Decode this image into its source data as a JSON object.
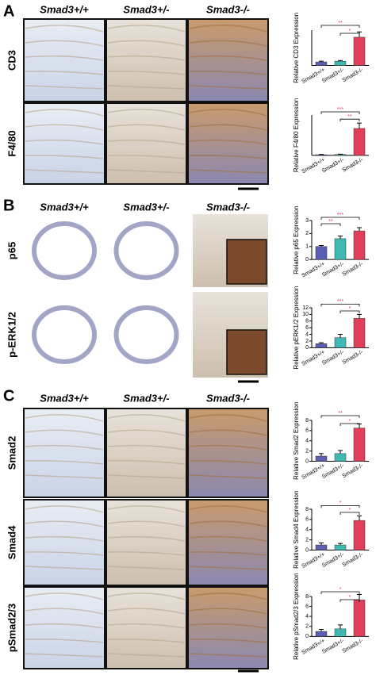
{
  "figure": {
    "panels": [
      {
        "label": "A",
        "columns": [
          "Smad3+/+",
          "Smad3+/-",
          "Smad3-/-"
        ],
        "rows": [
          "CD3",
          "F4/80"
        ]
      },
      {
        "label": "B",
        "columns": [
          "Smad3+/+",
          "Smad3+/-",
          "Smad3-/-"
        ],
        "rows": [
          "p65",
          "p-ERK1/2"
        ]
      },
      {
        "label": "C",
        "columns": [
          "Smad3+/+",
          "Smad3+/-",
          "Smad3-/-"
        ],
        "rows": [
          "Smad2",
          "Smad4",
          "pSmad2/3"
        ]
      }
    ]
  },
  "chart_data": [
    {
      "type": "bar",
      "ylabel": "Relative CD3 Expression",
      "categories": [
        "Smad3+/+",
        "Smad3+/-",
        "Smad3-/-"
      ],
      "values": [
        1,
        1.2,
        8
      ],
      "errors": [
        0.2,
        0.2,
        1.5
      ],
      "colors": [
        "#5a5fb4",
        "#3fbab2",
        "#e0405a"
      ],
      "ylim": [
        0,
        10
      ],
      "significance": [
        {
          "from": 0,
          "to": 2,
          "label": "**",
          "color": "#e0405a"
        },
        {
          "from": 1,
          "to": 2,
          "label": "*",
          "color": "#e0405a"
        }
      ]
    },
    {
      "type": "bar",
      "ylabel": "Relative F4/80 Expression",
      "categories": [
        "Smad3+/+",
        "Smad3+/-",
        "Smad3-/-"
      ],
      "values": [
        0.5,
        0.7,
        20
      ],
      "errors": [
        0.2,
        0.2,
        4
      ],
      "colors": [
        "#5a5fb4",
        "#3fbab2",
        "#e0405a"
      ],
      "ylim": [
        0,
        30
      ],
      "significance": [
        {
          "from": 0,
          "to": 2,
          "label": "***",
          "color": "#e0405a"
        },
        {
          "from": 1,
          "to": 2,
          "label": "**",
          "color": "#e0405a"
        }
      ]
    },
    {
      "type": "bar",
      "ylabel": "Relative p65 Expression",
      "categories": [
        "Smad3+/+",
        "Smad3+/-",
        "Smad3-/-"
      ],
      "values": [
        1,
        1.6,
        2.2
      ],
      "errors": [
        0.08,
        0.2,
        0.25
      ],
      "colors": [
        "#5a5fb4",
        "#3fbab2",
        "#e0405a"
      ],
      "ylim": [
        0,
        3
      ],
      "yticks": [
        0,
        1,
        2,
        3
      ],
      "significance": [
        {
          "from": 0,
          "to": 2,
          "label": "***",
          "color": "#e0405a"
        },
        {
          "from": 0,
          "to": 1,
          "label": "**",
          "color": "#e0405a"
        }
      ]
    },
    {
      "type": "bar",
      "ylabel": "Relative pERK1/2 Expression",
      "categories": [
        "Smad3+/+",
        "Smad3+/-",
        "Smad3-/-"
      ],
      "values": [
        1.2,
        3,
        8.8
      ],
      "errors": [
        0.3,
        1,
        1.2
      ],
      "colors": [
        "#5a5fb4",
        "#3fbab2",
        "#e0405a"
      ],
      "ylim": [
        0,
        12
      ],
      "yticks": [
        0,
        2,
        4,
        6,
        8,
        10,
        12
      ],
      "significance": [
        {
          "from": 0,
          "to": 2,
          "label": "***",
          "color": "#e0405a"
        },
        {
          "from": 1,
          "to": 2,
          "label": "*",
          "color": "#e0405a"
        }
      ]
    },
    {
      "type": "bar",
      "ylabel": "Relative Smad2 Expression",
      "categories": [
        "Smad3+/+",
        "Smad3+/-",
        "Smad3-/-"
      ],
      "values": [
        1,
        1.5,
        6.5
      ],
      "errors": [
        0.5,
        0.6,
        0.8
      ],
      "colors": [
        "#5a5fb4",
        "#3fbab2",
        "#e0405a"
      ],
      "ylim": [
        0,
        8
      ],
      "yticks": [
        0,
        2,
        4,
        6,
        8
      ],
      "significance": [
        {
          "from": 0,
          "to": 2,
          "label": "**",
          "color": "#e0405a"
        },
        {
          "from": 1,
          "to": 2,
          "label": "*",
          "color": "#e0405a"
        }
      ]
    },
    {
      "type": "bar",
      "ylabel": "Relative Smad4 Expression",
      "categories": [
        "Smad3+/+",
        "Smad3+/-",
        "Smad3-/-"
      ],
      "values": [
        1,
        1,
        5.8
      ],
      "errors": [
        0.4,
        0.3,
        0.9
      ],
      "colors": [
        "#5a5fb4",
        "#3fbab2",
        "#e0405a"
      ],
      "ylim": [
        0,
        8
      ],
      "yticks": [
        0,
        2,
        4,
        6,
        8
      ],
      "significance": [
        {
          "from": 0,
          "to": 2,
          "label": "*",
          "color": "#e0405a"
        },
        {
          "from": 1,
          "to": 2,
          "label": "*",
          "color": "#e0405a"
        }
      ]
    },
    {
      "type": "bar",
      "ylabel": "Relative pSmad2/3 Expression",
      "categories": [
        "Smad3+/+",
        "Smad3+/-",
        "Smad3-/-"
      ],
      "values": [
        1,
        1.5,
        7.3
      ],
      "errors": [
        0.4,
        0.8,
        1.1
      ],
      "colors": [
        "#5a5fb4",
        "#3fbab2",
        "#e0405a"
      ],
      "ylim": [
        0,
        8
      ],
      "yticks": [
        0,
        2,
        4,
        6,
        8
      ],
      "significance": [
        {
          "from": 0,
          "to": 2,
          "label": "*",
          "color": "#e0405a"
        },
        {
          "from": 1,
          "to": 2,
          "label": "*",
          "color": "#e0405a"
        }
      ]
    }
  ]
}
